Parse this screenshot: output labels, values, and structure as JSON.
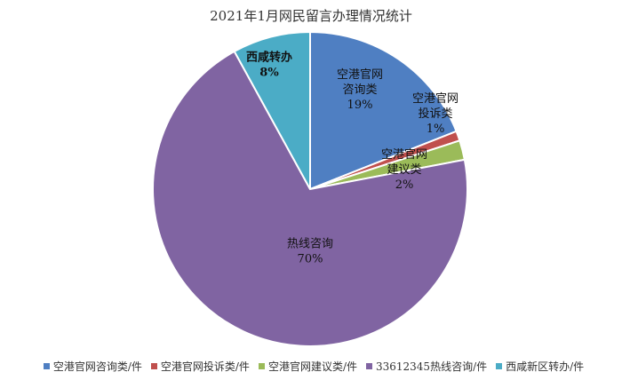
{
  "chart_data": {
    "type": "pie",
    "title": "2021年1月网民留言办理情况统计",
    "slices": [
      {
        "name": "空港官网咨询类/件",
        "label_lines": [
          "空港官网",
          "咨询类"
        ],
        "pct_label": "19%",
        "value": 19,
        "color": "#4f7fc2",
        "bold": false
      },
      {
        "name": "空港官网投诉类/件",
        "label_lines": [
          "空港官网",
          "投诉类"
        ],
        "pct_label": "1%",
        "value": 1,
        "color": "#c0504d",
        "bold": false
      },
      {
        "name": "空港官网建议类/件",
        "label_lines": [
          "空港官网",
          "建议类"
        ],
        "pct_label": "2%",
        "value": 2,
        "color": "#9bbb59",
        "bold": false
      },
      {
        "name": "33612345热线咨询/件",
        "label_lines": [
          "热线咨询"
        ],
        "pct_label": "70%",
        "value": 70,
        "color": "#8064a2",
        "bold": false
      },
      {
        "name": "西咸新区转办/件",
        "label_lines": [
          "西咸转办"
        ],
        "pct_label": "8%",
        "value": 8,
        "color": "#4bacc6",
        "bold": true
      }
    ],
    "legend_position": "bottom"
  }
}
